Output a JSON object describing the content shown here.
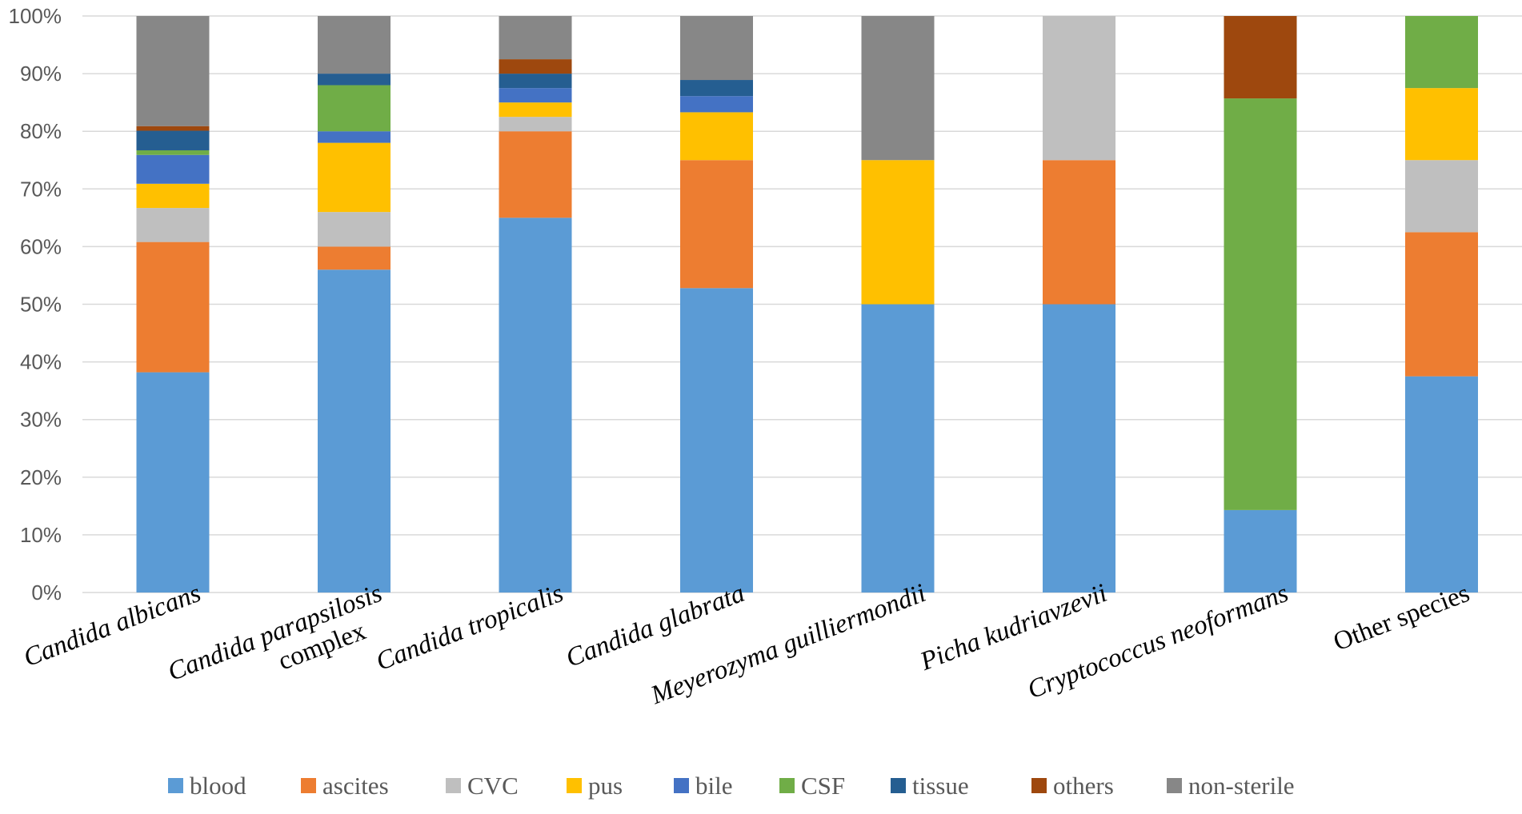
{
  "chart_data": {
    "type": "bar",
    "stacked": true,
    "percent": true,
    "title": "",
    "xlabel": "",
    "ylabel": "",
    "ylim": [
      0,
      100
    ],
    "ytick_labels": [
      "0%",
      "10%",
      "20%",
      "30%",
      "40%",
      "50%",
      "60%",
      "70%",
      "80%",
      "90%",
      "100%"
    ],
    "grid": true,
    "legend_position": "bottom",
    "categories": [
      {
        "lines": [
          "Candida albicans"
        ],
        "italic": true
      },
      {
        "lines": [
          "Candida parapsilosis",
          "complex"
        ],
        "italic": true,
        "italic_lines": [
          true,
          false
        ]
      },
      {
        "lines": [
          "Candida tropicalis"
        ],
        "italic": true
      },
      {
        "lines": [
          "Candida glabrata"
        ],
        "italic": true
      },
      {
        "lines": [
          "Meyerozyma guilliermondii"
        ],
        "italic": true
      },
      {
        "lines": [
          "Picha kudriavzevii"
        ],
        "italic": true
      },
      {
        "lines": [
          "Cryptococcus neoformans"
        ],
        "italic": true
      },
      {
        "lines": [
          "Other species"
        ],
        "italic": false
      }
    ],
    "series": [
      {
        "name": "blood",
        "color": "#5B9BD5",
        "values": [
          38.2,
          56.0,
          65.0,
          52.8,
          50.0,
          50.0,
          14.3,
          37.5
        ]
      },
      {
        "name": "ascites",
        "color": "#ED7D31",
        "values": [
          22.6,
          4.0,
          15.0,
          22.2,
          0,
          25.0,
          0,
          25.0
        ]
      },
      {
        "name": "CVC",
        "color": "#BFBFBF",
        "values": [
          5.9,
          6.0,
          2.5,
          0,
          0,
          25.0,
          0,
          12.5
        ]
      },
      {
        "name": "pus",
        "color": "#FFC000",
        "values": [
          4.2,
          12.0,
          2.5,
          8.3,
          25.0,
          0,
          0,
          12.5
        ]
      },
      {
        "name": "bile",
        "color": "#4472C4",
        "values": [
          5.0,
          2.0,
          2.5,
          2.8,
          0,
          0,
          0,
          0
        ]
      },
      {
        "name": "CSF",
        "color": "#70AD47",
        "values": [
          0.8,
          8.0,
          0,
          0,
          0,
          0,
          71.4,
          12.5
        ]
      },
      {
        "name": "tissue",
        "color": "#255E91",
        "values": [
          3.4,
          2.0,
          2.5,
          2.8,
          0,
          0,
          0,
          0
        ]
      },
      {
        "name": "others",
        "color": "#9E480E",
        "values": [
          0.8,
          0,
          2.5,
          0,
          0,
          0,
          14.3,
          0
        ]
      },
      {
        "name": "non-sterile",
        "color": "#878787",
        "values": [
          19.1,
          10.0,
          7.5,
          11.1,
          25.0,
          0,
          0,
          0
        ]
      }
    ],
    "gridline_color": "#D9D9D9",
    "axis_color": "#D9D9D9"
  }
}
